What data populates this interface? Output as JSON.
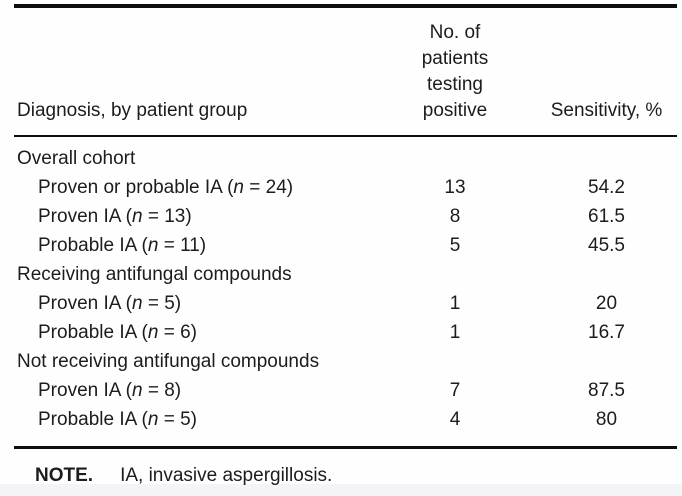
{
  "table": {
    "columns": [
      {
        "label": "Diagnosis, by patient group"
      },
      {
        "label": "No. of patients testing positive"
      },
      {
        "label": "Sensitivity, %"
      }
    ],
    "rows": [
      {
        "group": true,
        "label": "Overall cohort",
        "positive": "",
        "sensitivity": ""
      },
      {
        "group": false,
        "pre": "Proven or probable IA (",
        "n": "n",
        "post": " = 24)",
        "positive": "13",
        "sensitivity": "54.2"
      },
      {
        "group": false,
        "pre": "Proven IA (",
        "n": "n",
        "post": " = 13)",
        "positive": "8",
        "sensitivity": "61.5"
      },
      {
        "group": false,
        "pre": "Probable IA (",
        "n": "n",
        "post": " = 11)",
        "positive": "5",
        "sensitivity": "45.5"
      },
      {
        "group": true,
        "label": "Receiving antifungal compounds",
        "positive": "",
        "sensitivity": ""
      },
      {
        "group": false,
        "pre": "Proven IA (",
        "n": "n",
        "post": " = 5)",
        "positive": "1",
        "sensitivity": "20"
      },
      {
        "group": false,
        "pre": "Probable IA (",
        "n": "n",
        "post": " = 6)",
        "positive": "1",
        "sensitivity": "16.7"
      },
      {
        "group": true,
        "label": "Not receiving antifungal compounds",
        "positive": "",
        "sensitivity": ""
      },
      {
        "group": false,
        "pre": "Proven IA (",
        "n": "n",
        "post": " = 8)",
        "positive": "7",
        "sensitivity": "87.5"
      },
      {
        "group": false,
        "pre": "Probable IA (",
        "n": "n",
        "post": " = 5)",
        "positive": "4",
        "sensitivity": "80"
      }
    ]
  },
  "note": {
    "label": "NOTE.",
    "text": "IA, invasive aspergillosis."
  },
  "colors": {
    "rule": "#0e0e0e",
    "text": "#1c1c1c",
    "background": "#fefefe",
    "bottom_band": "#f4f4f6"
  }
}
